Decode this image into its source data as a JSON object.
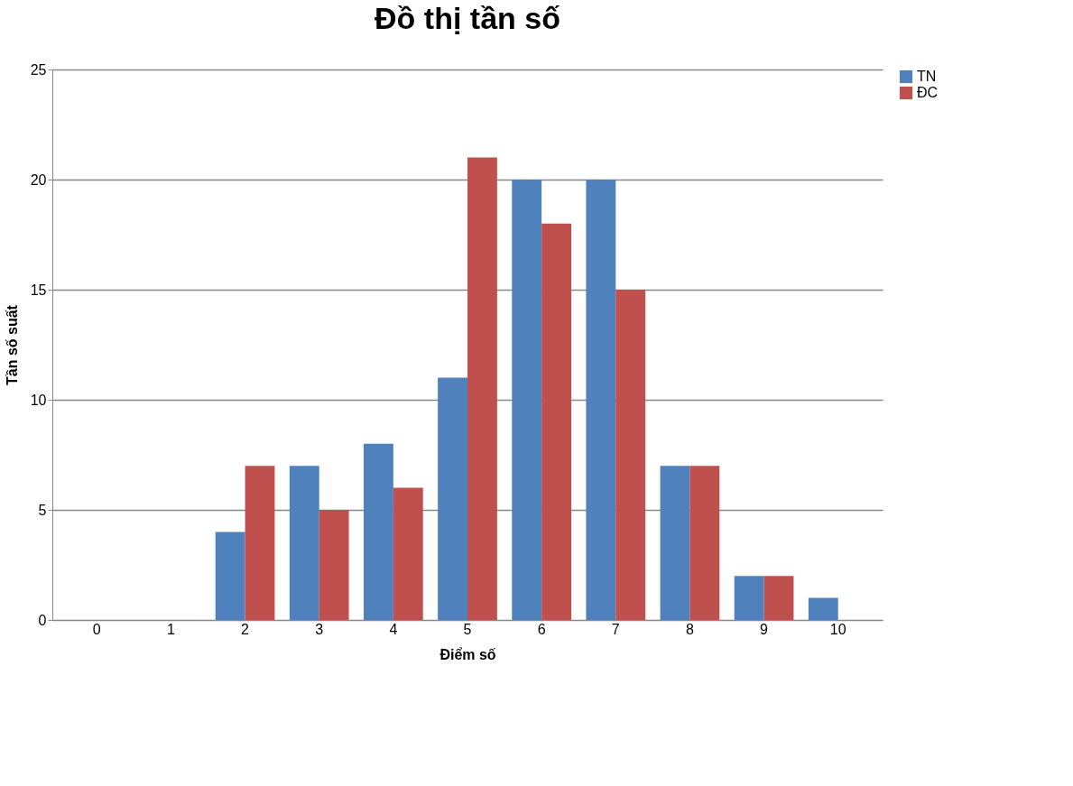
{
  "chart_data": {
    "type": "bar",
    "title": "Đồ thị tần số",
    "xlabel": "Điểm số",
    "ylabel": "Tần số suất",
    "categories": [
      "0",
      "1",
      "2",
      "3",
      "4",
      "5",
      "6",
      "7",
      "8",
      "9",
      "10"
    ],
    "series": [
      {
        "name": "TN",
        "color": "#4f81bd",
        "values": [
          0,
          0,
          4,
          7,
          8,
          11,
          20,
          20,
          7,
          2,
          1
        ]
      },
      {
        "name": "ĐC",
        "color": "#c0504d",
        "values": [
          0,
          0,
          7,
          5,
          6,
          21,
          18,
          15,
          7,
          2,
          0
        ]
      }
    ],
    "ylim": [
      0,
      25
    ],
    "yticks": [
      0,
      5,
      10,
      15,
      20,
      25
    ],
    "grid": "y",
    "legend": "right"
  }
}
